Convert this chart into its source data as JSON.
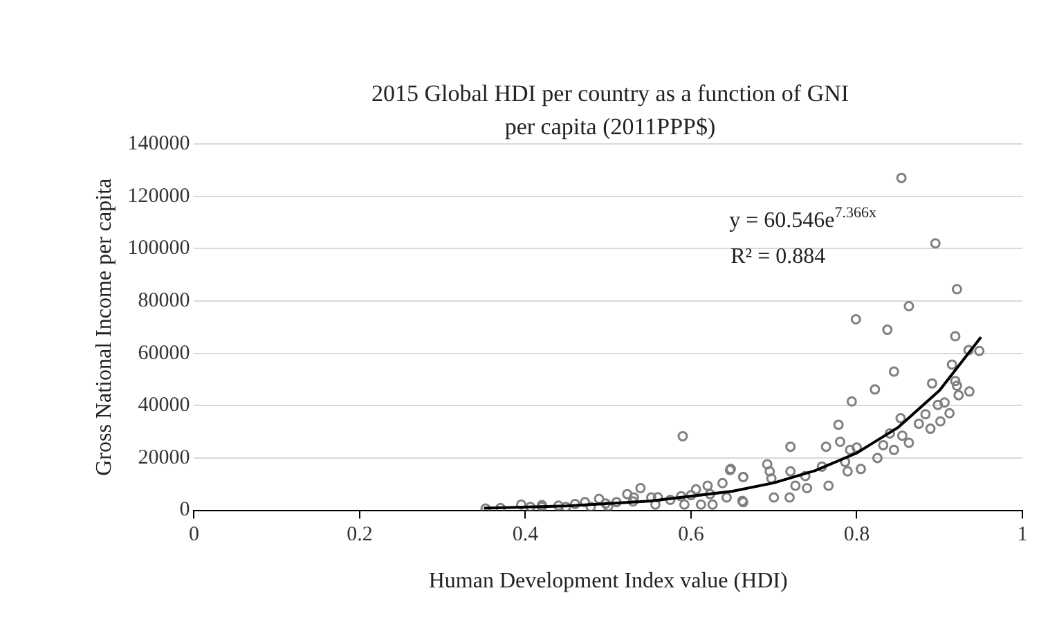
{
  "chart_data": {
    "type": "scatter",
    "title": "2015 Global HDI per country as a function of GNI per capita (2011PPP$)",
    "xlabel": "Human Development Index value (HDI)",
    "ylabel": "Gross National Income per capita",
    "xlim": [
      0,
      1
    ],
    "xticks": [
      0,
      0.2,
      0.4,
      0.6,
      0.8,
      1
    ],
    "ylim": [
      0,
      140000
    ],
    "yticks": [
      0,
      20000,
      40000,
      60000,
      80000,
      100000,
      120000,
      140000
    ],
    "grid": "y",
    "legend": false,
    "annotations": [
      "y = 60.546e$^{7.366x}$",
      "R² = 0.884"
    ],
    "series": [
      {
        "type": "scatter",
        "color": "#808080",
        "marker": "circle",
        "x": [
          0.352,
          0.37,
          0.395,
          0.406,
          0.42,
          0.42,
          0.44,
          0.449,
          0.46,
          0.472,
          0.479,
          0.489,
          0.497,
          0.5,
          0.51,
          0.523,
          0.53,
          0.531,
          0.539,
          0.552,
          0.557,
          0.56,
          0.575,
          0.588,
          0.59,
          0.592,
          0.6,
          0.606,
          0.612,
          0.62,
          0.623,
          0.626,
          0.638,
          0.643,
          0.647,
          0.648,
          0.662,
          0.663,
          0.663,
          0.663,
          0.692,
          0.695,
          0.697,
          0.7,
          0.719,
          0.72,
          0.72,
          0.726,
          0.738,
          0.74,
          0.758,
          0.763,
          0.766,
          0.778,
          0.78,
          0.786,
          0.789,
          0.792,
          0.794,
          0.799,
          0.8,
          0.805,
          0.822,
          0.825,
          0.832,
          0.837,
          0.84,
          0.845,
          0.845,
          0.853,
          0.854,
          0.855,
          0.863,
          0.863,
          0.875,
          0.883,
          0.889,
          0.891,
          0.895,
          0.898,
          0.901,
          0.906,
          0.912,
          0.915,
          0.919,
          0.919,
          0.921,
          0.921,
          0.923,
          0.935,
          0.936,
          0.948
        ],
        "values": [
          700,
          900,
          2200,
          1300,
          1300,
          2000,
          1800,
          1300,
          2400,
          3100,
          1300,
          4400,
          2600,
          1500,
          3100,
          6200,
          3400,
          4900,
          8500,
          4900,
          2200,
          5000,
          4000,
          5400,
          28300,
          2200,
          5800,
          8000,
          2200,
          9400,
          6200,
          2200,
          10400,
          4900,
          15400,
          15800,
          3600,
          12700,
          12700,
          3100,
          17600,
          14900,
          12200,
          4900,
          4900,
          24300,
          14900,
          9400,
          13100,
          8500,
          16700,
          24300,
          9400,
          32700,
          26200,
          18500,
          14900,
          23100,
          41600,
          73000,
          24000,
          15800,
          46200,
          20000,
          24900,
          69000,
          29400,
          53000,
          23100,
          35200,
          127000,
          28500,
          25800,
          78000,
          33100,
          36700,
          31200,
          48500,
          102000,
          40300,
          34000,
          41200,
          37100,
          55700,
          49400,
          66500,
          47600,
          84500,
          44000,
          61200,
          45400,
          60900
        ]
      },
      {
        "type": "line",
        "color": "#000000",
        "marker": "none",
        "x": [
          0.35,
          0.45,
          0.55,
          0.65,
          0.7,
          0.75,
          0.8,
          0.85,
          0.9,
          0.95
        ],
        "values": [
          800,
          1700,
          3500,
          7300,
          10500,
          15200,
          21900,
          31700,
          45800,
          66200
        ]
      }
    ]
  }
}
